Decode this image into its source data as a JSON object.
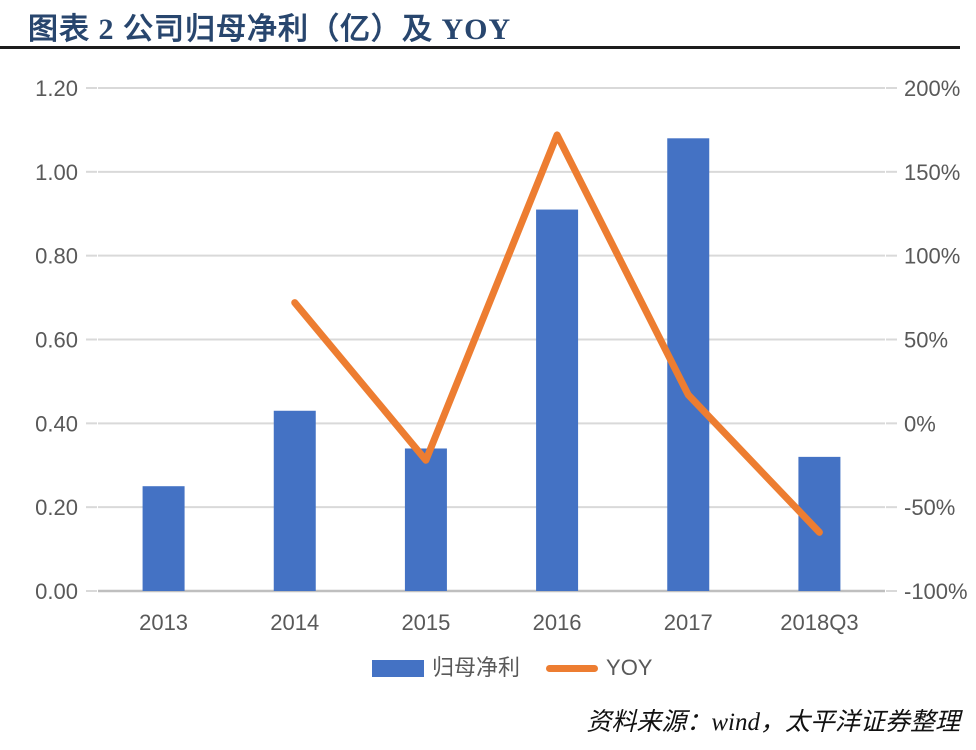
{
  "header": {
    "title": "图表 2 公司归母净利（亿）及 YOY"
  },
  "footer": {
    "source": "资料来源：wind，太平洋证券整理"
  },
  "colors": {
    "bar": "#4472C4",
    "line": "#ED7D31",
    "gridline": "#D9D9D9",
    "axis_line": "#BFBFBF",
    "axis_text": "#595959",
    "title_text": "#28466E",
    "title_rule": "#1C1C1C"
  },
  "chart_data": {
    "type": "bar",
    "subtype": "combo-bar-line-dual-axis",
    "title": "图表 2 公司归母净利（亿）及 YOY",
    "categories": [
      "2013",
      "2014",
      "2015",
      "2016",
      "2017",
      "2018Q3"
    ],
    "series": [
      {
        "name": "归母净利",
        "type": "bar",
        "axis": "left",
        "color": "#4472C4",
        "values": [
          0.25,
          0.43,
          0.34,
          0.91,
          1.08,
          0.32
        ]
      },
      {
        "name": "YOY",
        "type": "line",
        "axis": "right",
        "color": "#ED7D31",
        "values": [
          null,
          72,
          -22,
          172,
          17,
          -65
        ]
      }
    ],
    "left_axis": {
      "min": 0.0,
      "max": 1.2,
      "tick_labels": [
        "0.00",
        "0.20",
        "0.40",
        "0.60",
        "0.80",
        "1.00",
        "1.20"
      ]
    },
    "right_axis": {
      "min": -100,
      "max": 200,
      "tick_labels": [
        "-100%",
        "-50%",
        "0%",
        "50%",
        "100%",
        "150%",
        "200%"
      ]
    },
    "grid": true,
    "legend_position": "bottom"
  }
}
